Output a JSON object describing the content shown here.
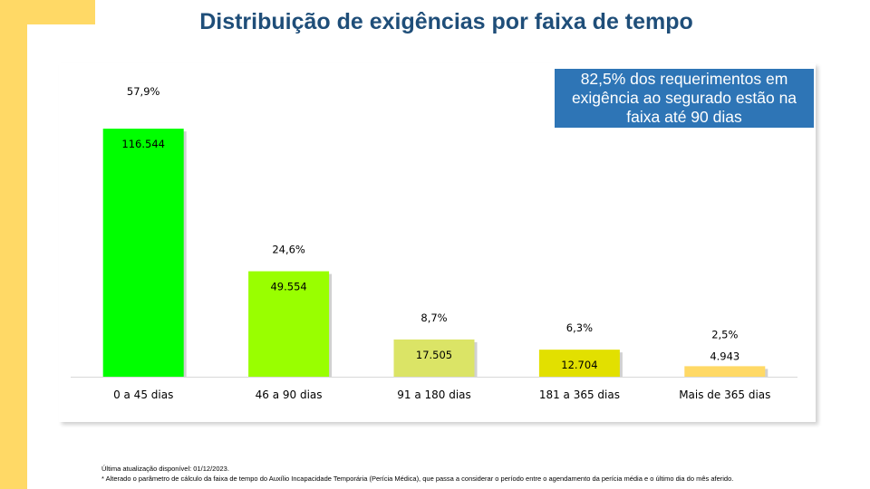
{
  "title": "Distribuição de exigências por faixa de tempo",
  "callout": "82,5% dos requerimentos em exigência ao segurado estão na faixa até 90 dias",
  "footer": {
    "update": "Última atualização disponível:  01/12/2023.",
    "note": "* Alterado o parâmetro de cálculo da faixa de tempo do Auxílio Incapacidade Temporária (Perícia Médica), que passa a considerar o período entre o agendamento da perícia média e o último dia do mês aferido."
  },
  "colors": {
    "frame": "#ffd966",
    "title": "#1f4e79",
    "callout": "#2e75b6"
  },
  "chart_data": {
    "type": "bar",
    "title": "Distribuição de exigências por faixa de tempo",
    "categories": [
      "0 a 45 dias",
      "46 a 90 dias",
      "91 a 180 dias",
      "181 a 365 dias",
      "Mais de 365 dias"
    ],
    "values": [
      116544,
      49554,
      17505,
      12704,
      4943
    ],
    "value_labels": [
      "116.544",
      "49.554",
      "17.505",
      "12.704",
      "4.943"
    ],
    "percent_labels": [
      "57,9%",
      "24,6%",
      "8,7%",
      "6,3%",
      "2,5%"
    ],
    "bar_colors": [
      "#00ff00",
      "#99ff00",
      "#dbe466",
      "#e2e000",
      "#ffd966"
    ],
    "ylim": [
      0,
      140000
    ],
    "grid": false,
    "legend": "none",
    "xlabel": "",
    "ylabel": ""
  }
}
